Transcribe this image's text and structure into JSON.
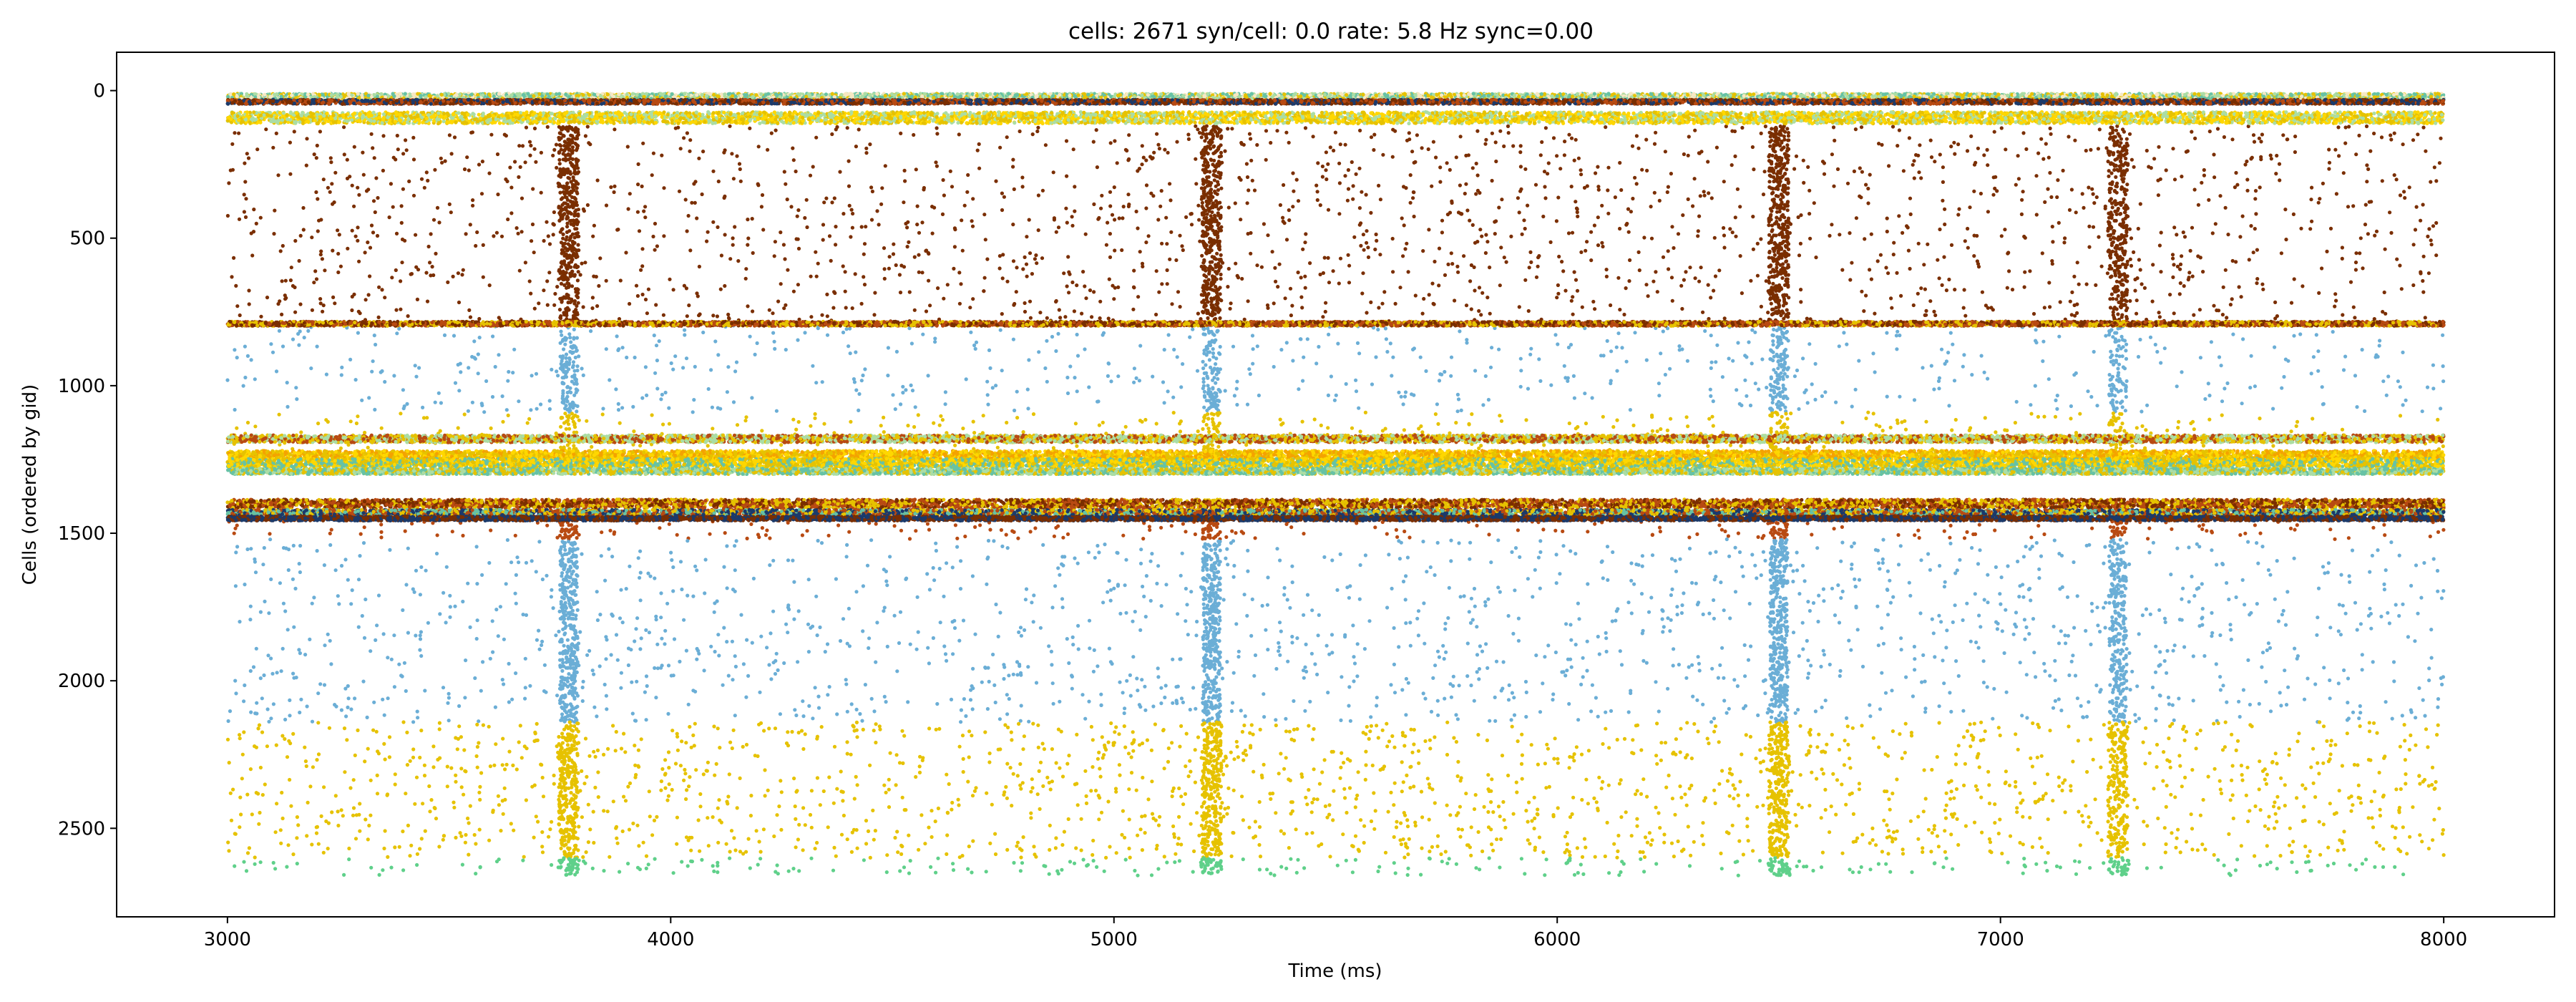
{
  "chart_data": {
    "type": "scatter",
    "title": "cells: 2671   syn/cell: 0.0   rate: 5.8 Hz    sync=0.00",
    "xlabel": "Time (ms)",
    "ylabel": "Cells (ordered by gid)",
    "xlim": [
      2750,
      8250
    ],
    "ylim": [
      2800,
      -130
    ],
    "y_inverted": true,
    "grid": false,
    "xticks": [
      3000,
      4000,
      5000,
      6000,
      7000,
      8000
    ],
    "yticks": [
      0,
      500,
      1000,
      1500,
      2000,
      2500
    ],
    "x_range": [
      3000,
      8000
    ],
    "burst_times": [
      3770,
      5220,
      6500,
      7265
    ],
    "series": [
      {
        "color": "#7a2e00",
        "y_range": [
          120,
          790
        ],
        "density": 2.3,
        "burst_strength": 1.0,
        "burst_width": 45
      },
      {
        "color": "#6baed6",
        "y_range": [
          790,
          1090
        ],
        "density": 1.6,
        "burst_strength": 0.7,
        "burst_width": 40
      },
      {
        "color": "#e6c200",
        "y_range": [
          1090,
          1240
        ],
        "density": 2.0,
        "burst_strength": 0.7,
        "burst_width": 40
      },
      {
        "color": "#b84a12",
        "y_range": [
          1460,
          1520
        ],
        "density": 2.5,
        "burst_strength": 1.0,
        "burst_width": 40
      },
      {
        "color": "#6baed6",
        "y_range": [
          1520,
          2140
        ],
        "density": 2.0,
        "burst_strength": 1.0,
        "burst_width": 40
      },
      {
        "color": "#e6c200",
        "y_range": [
          2140,
          2600
        ],
        "density": 3.0,
        "burst_strength": 1.0,
        "burst_width": 45
      },
      {
        "color": "#5fd08a",
        "y_range": [
          2600,
          2660
        ],
        "density": 3.0,
        "burst_strength": 1.0,
        "burst_width": 50
      }
    ],
    "bands": [
      {
        "y": 20,
        "height": 8,
        "colors": [
          "#e6c200",
          "#66c2a5",
          "#abdda4",
          "#f6e8c3"
        ]
      },
      {
        "y": 38,
        "height": 6,
        "colors": [
          "#1b3a6b",
          "#b84a12",
          "#7a2e00"
        ]
      },
      {
        "y": 92,
        "height": 16,
        "colors": [
          "#e6c200",
          "#ffd700",
          "#abdda4"
        ]
      },
      {
        "y": 790,
        "height": 6,
        "colors": [
          "#7a2e00",
          "#b84a12",
          "#e6c200"
        ]
      },
      {
        "y": 1180,
        "height": 10,
        "colors": [
          "#e6c200",
          "#b84a12",
          "#abdda4"
        ]
      },
      {
        "y": 1235,
        "height": 12,
        "colors": [
          "#e6c200",
          "#ffd700",
          "#f4a300"
        ]
      },
      {
        "y": 1262,
        "height": 12,
        "colors": [
          "#ffd700",
          "#66c2a5",
          "#e6c200"
        ]
      },
      {
        "y": 1290,
        "height": 8,
        "colors": [
          "#abdda4",
          "#e6c200",
          "#66c2a5"
        ]
      },
      {
        "y": 1400,
        "height": 12,
        "colors": [
          "#b84a12",
          "#7a2e00",
          "#e6c200"
        ]
      },
      {
        "y": 1430,
        "height": 8,
        "colors": [
          "#1b3a6b",
          "#66c2a5",
          "#e6c200",
          "#b84a12"
        ]
      },
      {
        "y": 1450,
        "height": 6,
        "colors": [
          "#1b3a6b",
          "#7a2e00"
        ]
      }
    ]
  }
}
